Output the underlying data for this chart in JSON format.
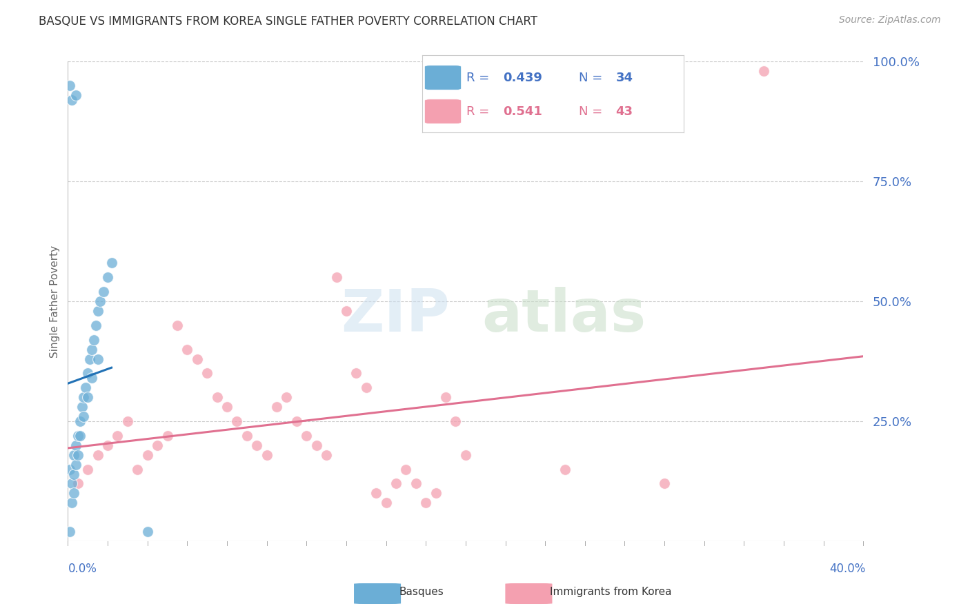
{
  "title": "BASQUE VS IMMIGRANTS FROM KOREA SINGLE FATHER POVERTY CORRELATION CHART",
  "source": "Source: ZipAtlas.com",
  "ylabel": "Single Father Poverty",
  "legend_blue_r": "0.439",
  "legend_blue_n": "34",
  "legend_pink_r": "0.541",
  "legend_pink_n": "43",
  "legend_label_blue": "Basques",
  "legend_label_pink": "Immigrants from Korea",
  "watermark_zip": "ZIP",
  "watermark_atlas": "atlas",
  "blue_color": "#6baed6",
  "pink_color": "#f4a0b0",
  "blue_line_color": "#2171b5",
  "pink_line_color": "#e07090",
  "dash_color": "#bbccdd",
  "background_color": "#ffffff",
  "basques_x": [
    0.001,
    0.002,
    0.004,
    0.001,
    0.002,
    0.003,
    0.004,
    0.005,
    0.006,
    0.007,
    0.008,
    0.009,
    0.01,
    0.011,
    0.012,
    0.013,
    0.014,
    0.015,
    0.016,
    0.018,
    0.02,
    0.022,
    0.003,
    0.004,
    0.005,
    0.006,
    0.008,
    0.01,
    0.012,
    0.015,
    0.002,
    0.003,
    0.04,
    0.001
  ],
  "basques_y": [
    0.95,
    0.92,
    0.93,
    0.15,
    0.12,
    0.18,
    0.2,
    0.22,
    0.25,
    0.28,
    0.3,
    0.32,
    0.35,
    0.38,
    0.4,
    0.42,
    0.45,
    0.48,
    0.5,
    0.52,
    0.55,
    0.58,
    0.14,
    0.16,
    0.18,
    0.22,
    0.26,
    0.3,
    0.34,
    0.38,
    0.08,
    0.1,
    0.02,
    0.02
  ],
  "korea_x": [
    0.005,
    0.01,
    0.015,
    0.02,
    0.025,
    0.03,
    0.035,
    0.04,
    0.045,
    0.05,
    0.055,
    0.06,
    0.065,
    0.07,
    0.075,
    0.08,
    0.085,
    0.09,
    0.095,
    0.1,
    0.105,
    0.11,
    0.115,
    0.12,
    0.125,
    0.13,
    0.135,
    0.14,
    0.145,
    0.15,
    0.155,
    0.16,
    0.165,
    0.17,
    0.175,
    0.18,
    0.185,
    0.19,
    0.195,
    0.2,
    0.25,
    0.3,
    0.35
  ],
  "korea_y": [
    0.12,
    0.15,
    0.18,
    0.2,
    0.22,
    0.25,
    0.15,
    0.18,
    0.2,
    0.22,
    0.45,
    0.4,
    0.38,
    0.35,
    0.3,
    0.28,
    0.25,
    0.22,
    0.2,
    0.18,
    0.28,
    0.3,
    0.25,
    0.22,
    0.2,
    0.18,
    0.55,
    0.48,
    0.35,
    0.32,
    0.1,
    0.08,
    0.12,
    0.15,
    0.12,
    0.08,
    0.1,
    0.3,
    0.25,
    0.18,
    0.15,
    0.12,
    0.98
  ],
  "xlim": [
    0,
    0.4
  ],
  "ylim": [
    0,
    1.0
  ],
  "right_yticks": [
    0.25,
    0.5,
    0.75,
    1.0
  ],
  "right_yticklabels": [
    "25.0%",
    "50.0%",
    "75.0%",
    "100.0%"
  ]
}
